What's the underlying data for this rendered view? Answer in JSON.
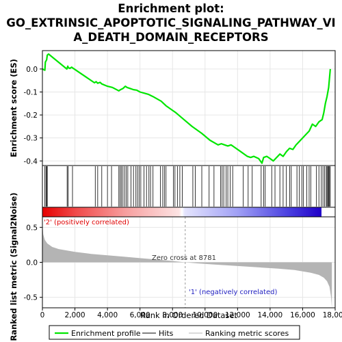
{
  "title_lines": [
    "Enrichment plot:",
    "GO_EXTRINSIC_APOPTOTIC_SIGNALING_PATHWAY_VI",
    "A_DEATH_DOMAIN_RECEPTORS"
  ],
  "colors": {
    "profile": "#00e600",
    "hits": "#000000",
    "metric": "#b4b4b4",
    "positive_text": "#e00000",
    "negative_text": "#2020c0",
    "red_end": "#e60000",
    "blue_end": "#2000c8"
  },
  "labels": {
    "es_axis": "Enrichment score (ES)",
    "metric_axis": "Ranked list metric (Signal2Noise)",
    "x_axis": "Rank in Ordered Dataset",
    "positive": "'2' (positively correlated)",
    "negative": "'1' (negatively correlated)",
    "zero_cross": "Zero cross at 8781"
  },
  "legend": {
    "profile": "Enrichment profile",
    "hits": "Hits",
    "metric": "Ranking metric scores"
  },
  "chart_data": {
    "type": "line",
    "total_genes": 17800,
    "zero_cross": 8781,
    "xlim": [
      0,
      18000
    ],
    "x_ticks": [
      0,
      2000,
      4000,
      6000,
      8000,
      10000,
      12000,
      14000,
      16000,
      18000
    ],
    "x_tick_labels": [
      "0",
      "2,000",
      "4,000",
      "6,000",
      "8,000",
      "10,000",
      "12,000",
      "14,000",
      "16,000",
      "18,000"
    ],
    "es": {
      "ylim": [
        -0.42,
        0.08
      ],
      "y_ticks": [
        0.0,
        -0.1,
        -0.2,
        -0.3,
        -0.4
      ],
      "y_tick_labels": [
        "0.0",
        "-0.1",
        "-0.2",
        "-0.3",
        "-0.4"
      ],
      "grid": true,
      "x": [
        0,
        150,
        180,
        260,
        300,
        380,
        1500,
        1560,
        1600,
        1700,
        1800,
        1850,
        3200,
        3300,
        3400,
        3550,
        3650,
        4000,
        4300,
        4700,
        4800,
        4950,
        5100,
        5200,
        5400,
        5600,
        5800,
        6000,
        6500,
        6800,
        7300,
        7600,
        8200,
        8700,
        9200,
        9800,
        10300,
        10800,
        11000,
        11200,
        11400,
        11600,
        11800,
        12200,
        12600,
        12800,
        13000,
        13300,
        13500,
        13600,
        13800,
        14000,
        14200,
        14400,
        14600,
        14800,
        15000,
        15200,
        15400,
        15600,
        15800,
        16000,
        16200,
        16400,
        16600,
        16800,
        17000,
        17200,
        17300,
        17400,
        17500,
        17600,
        17700
      ],
      "y": [
        0.0,
        -0.005,
        0.03,
        0.04,
        0.06,
        0.065,
        0.0,
        0.012,
        0.005,
        0.003,
        0.008,
        0.005,
        -0.06,
        -0.055,
        -0.062,
        -0.058,
        -0.065,
        -0.075,
        -0.08,
        -0.095,
        -0.09,
        -0.085,
        -0.075,
        -0.08,
        -0.085,
        -0.09,
        -0.092,
        -0.1,
        -0.11,
        -0.12,
        -0.14,
        -0.16,
        -0.19,
        -0.22,
        -0.25,
        -0.28,
        -0.31,
        -0.33,
        -0.325,
        -0.33,
        -0.335,
        -0.33,
        -0.34,
        -0.36,
        -0.38,
        -0.385,
        -0.38,
        -0.39,
        -0.41,
        -0.385,
        -0.38,
        -0.39,
        -0.4,
        -0.385,
        -0.37,
        -0.38,
        -0.36,
        -0.345,
        -0.35,
        -0.33,
        -0.315,
        -0.3,
        -0.285,
        -0.27,
        -0.24,
        -0.25,
        -0.23,
        -0.22,
        -0.19,
        -0.15,
        -0.12,
        -0.08,
        0.0
      ]
    },
    "hits": [
      150,
      220,
      260,
      300,
      1520,
      1580,
      1850,
      3250,
      3400,
      3650,
      4000,
      4250,
      4700,
      4780,
      4850,
      4950,
      5050,
      5150,
      5250,
      5450,
      5600,
      5750,
      5850,
      5950,
      6050,
      6250,
      6400,
      6550,
      6650,
      6800,
      7250,
      7400,
      7500,
      7600,
      8050,
      8150,
      8300,
      8450,
      8600,
      9250,
      9400,
      9800,
      10250,
      10550,
      10950,
      11050,
      11150,
      11300,
      11400,
      11550,
      11700,
      12350,
      12650,
      12900,
      13450,
      13600,
      13700,
      14100,
      14300,
      14600,
      14800,
      15000,
      15200,
      15300,
      15650,
      15800,
      15950,
      16050,
      16250,
      16400,
      16500,
      16850,
      17000,
      17150,
      17250,
      17350,
      17450,
      17500,
      17550,
      17600,
      17650,
      17700
    ],
    "metric": {
      "ylim": [
        -0.65,
        0.65
      ],
      "y_ticks": [
        0.5,
        0.0,
        -0.5
      ],
      "y_tick_labels": [
        "0.5",
        "0.0",
        "-0.5"
      ],
      "grid": true,
      "x": [
        0,
        50,
        150,
        300,
        600,
        1000,
        2000,
        3000,
        4000,
        5000,
        6000,
        7000,
        8000,
        8781,
        9500,
        10500,
        11500,
        12500,
        13500,
        14500,
        15500,
        16000,
        16500,
        17000,
        17300,
        17500,
        17650,
        17750,
        17800
      ],
      "y": [
        0.55,
        0.4,
        0.32,
        0.27,
        0.22,
        0.19,
        0.15,
        0.12,
        0.1,
        0.08,
        0.06,
        0.04,
        0.02,
        0.0,
        -0.015,
        -0.03,
        -0.045,
        -0.06,
        -0.075,
        -0.09,
        -0.11,
        -0.13,
        -0.15,
        -0.18,
        -0.22,
        -0.27,
        -0.35,
        -0.5,
        -0.65
      ]
    }
  }
}
